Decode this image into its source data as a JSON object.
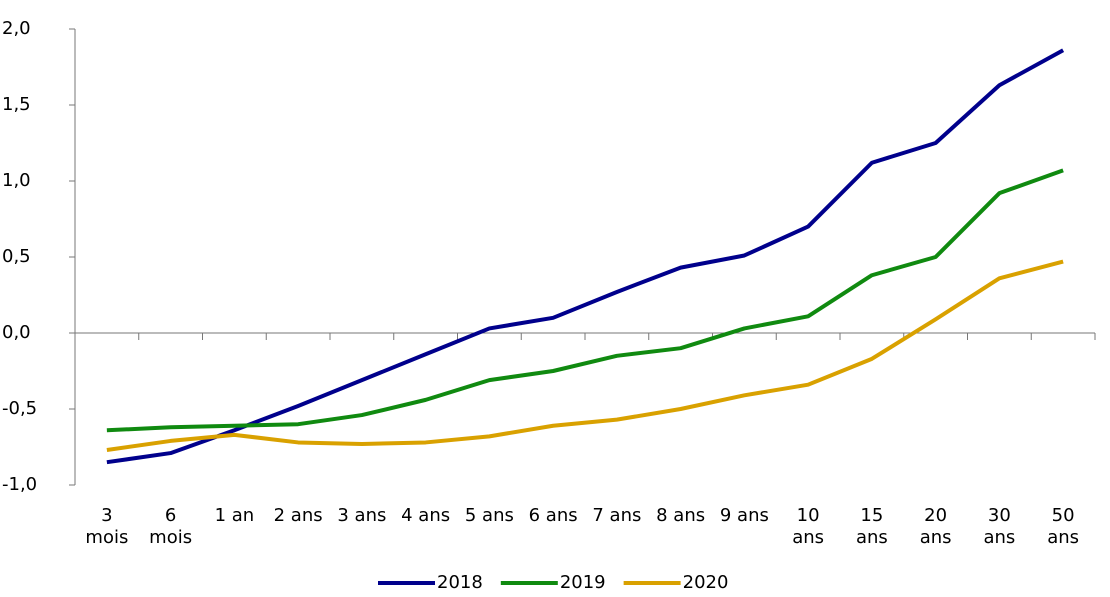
{
  "chart_data": {
    "type": "line",
    "categories": [
      "3 mois",
      "6 mois",
      "1 an",
      "2 ans",
      "3 ans",
      "4 ans",
      "5 ans",
      "6 ans",
      "7 ans",
      "8 ans",
      "9 ans",
      "10 ans",
      "15 ans",
      "20 ans",
      "30 ans",
      "50 ans"
    ],
    "series": [
      {
        "name": "2018",
        "color": "#00008c",
        "values": [
          -0.85,
          -0.79,
          -0.64,
          -0.48,
          -0.31,
          -0.14,
          0.03,
          0.1,
          0.27,
          0.43,
          0.51,
          0.7,
          1.12,
          1.25,
          1.63,
          1.86
        ]
      },
      {
        "name": "2019",
        "color": "#108a10",
        "values": [
          -0.64,
          -0.62,
          -0.61,
          -0.6,
          -0.54,
          -0.44,
          -0.31,
          -0.25,
          -0.15,
          -0.1,
          0.03,
          0.11,
          0.38,
          0.5,
          0.92,
          1.07
        ]
      },
      {
        "name": "2020",
        "color": "#d9a100",
        "values": [
          -0.77,
          -0.71,
          -0.67,
          -0.72,
          -0.73,
          -0.72,
          -0.68,
          -0.61,
          -0.57,
          -0.5,
          -0.41,
          -0.34,
          -0.17,
          0.09,
          0.36,
          0.47
        ]
      }
    ],
    "ylim": [
      -1,
      2
    ],
    "yticks": [
      {
        "value": -1,
        "label": "-1,0"
      },
      {
        "value": -0.5,
        "label": "-0,5"
      },
      {
        "value": 0,
        "label": "0,0"
      },
      {
        "value": 0.5,
        "label": "0,5"
      },
      {
        "value": 1,
        "label": "1,0"
      },
      {
        "value": 1.5,
        "label": "1,5"
      },
      {
        "value": 2,
        "label": "2,0"
      }
    ],
    "legend": "bottom"
  }
}
